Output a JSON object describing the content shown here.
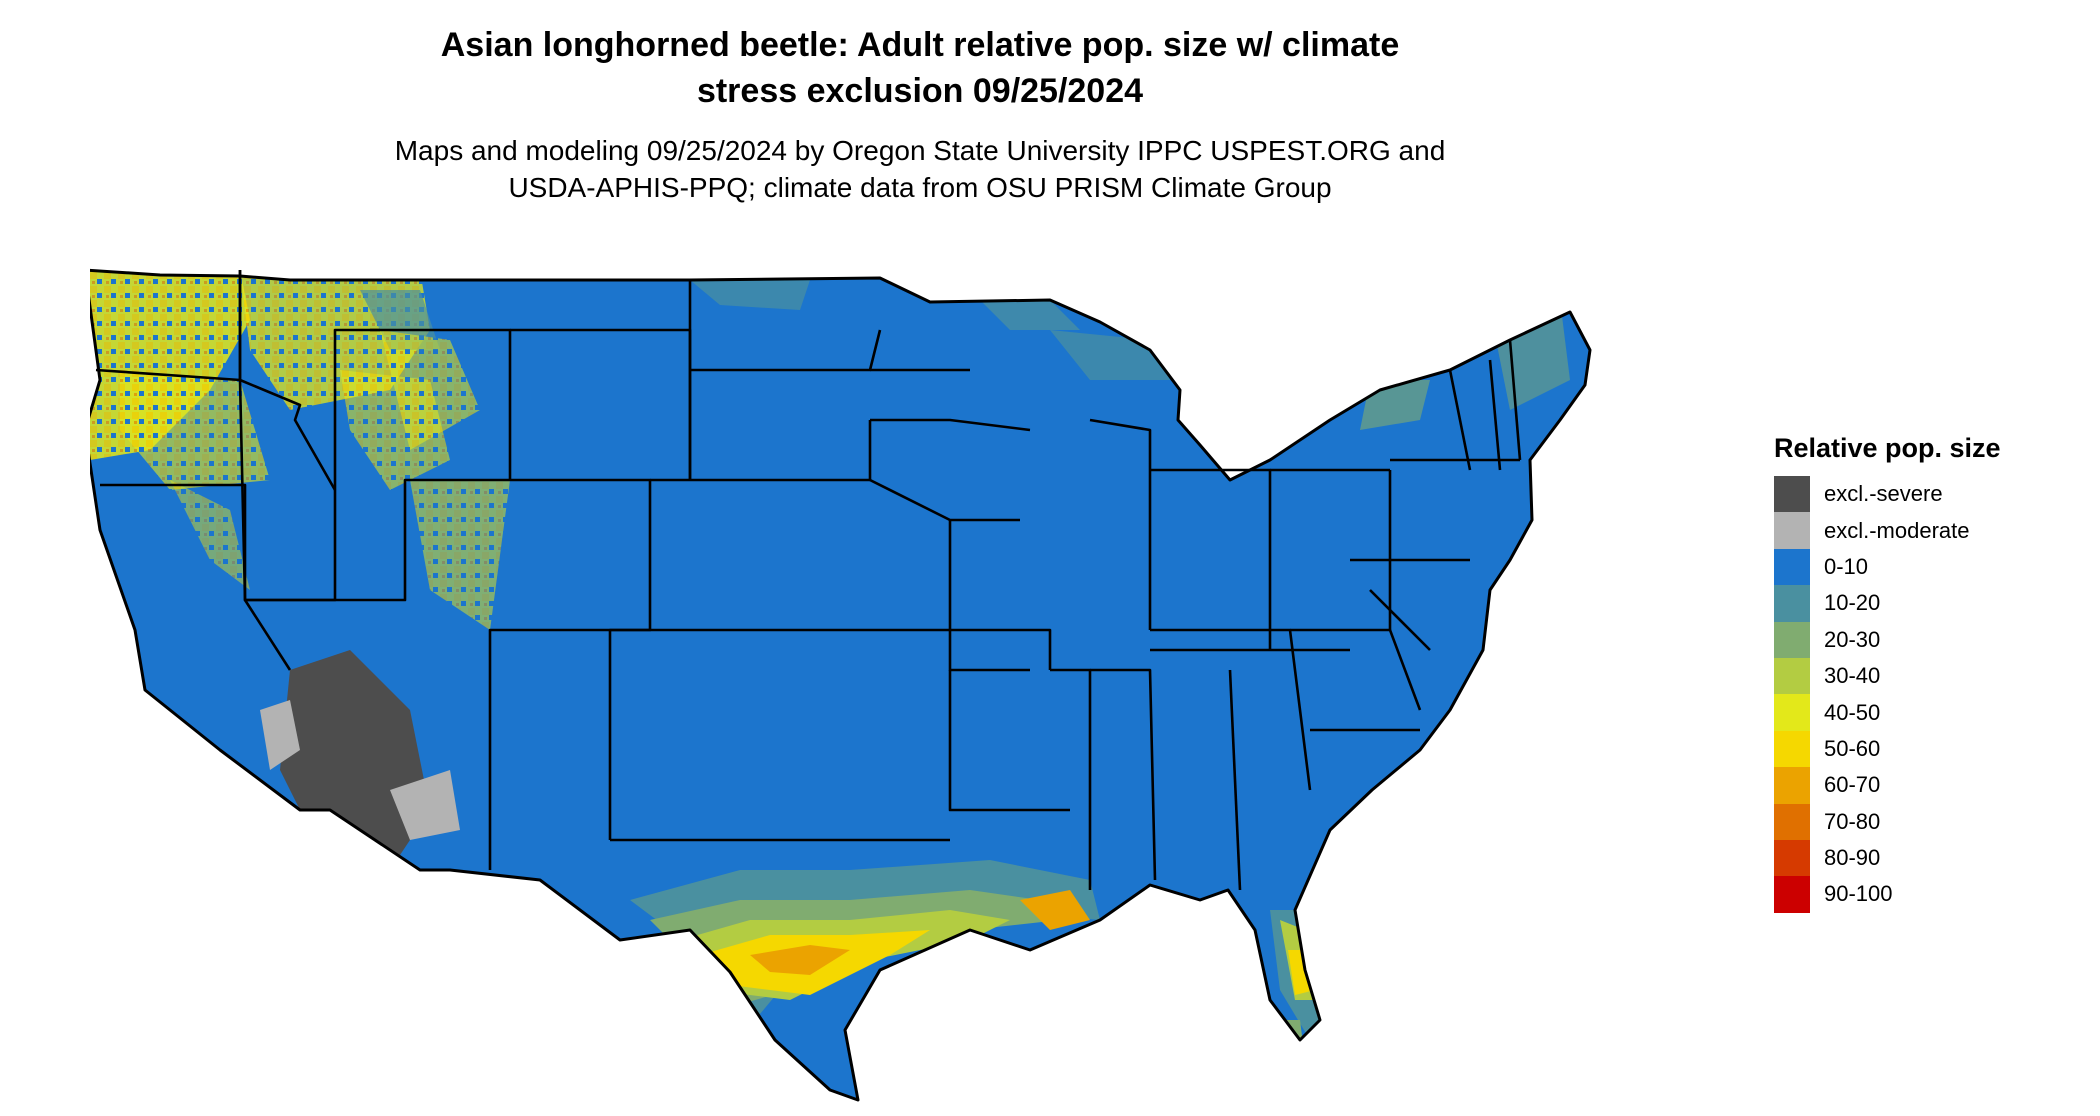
{
  "title_line1": "Asian longhorned beetle: Adult relative pop. size w/ climate",
  "title_line2": "stress exclusion 09/25/2024",
  "subtitle_line1": "Maps and modeling 09/25/2024 by Oregon State University IPPC USPEST.ORG and",
  "subtitle_line2": "USDA-APHIS-PPQ; climate data from OSU PRISM Climate Group",
  "legend": {
    "title": "Relative pop. size",
    "items": [
      {
        "label": "excl.-severe",
        "color": "#4d4d4d"
      },
      {
        "label": "excl.-moderate",
        "color": "#b3b3b3"
      },
      {
        "label": "0-10",
        "color": "#1c75cd"
      },
      {
        "label": "10-20",
        "color": "#4a90a0"
      },
      {
        "label": "20-30",
        "color": "#80ac70"
      },
      {
        "label": "30-40",
        "color": "#b3cc42"
      },
      {
        "label": "40-50",
        "color": "#e3e81a"
      },
      {
        "label": "50-60",
        "color": "#f5d800"
      },
      {
        "label": "60-70",
        "color": "#eba300"
      },
      {
        "label": "70-80",
        "color": "#e07000"
      },
      {
        "label": "80-90",
        "color": "#d63a00"
      },
      {
        "label": "90-100",
        "color": "#cc0000"
      }
    ]
  }
}
